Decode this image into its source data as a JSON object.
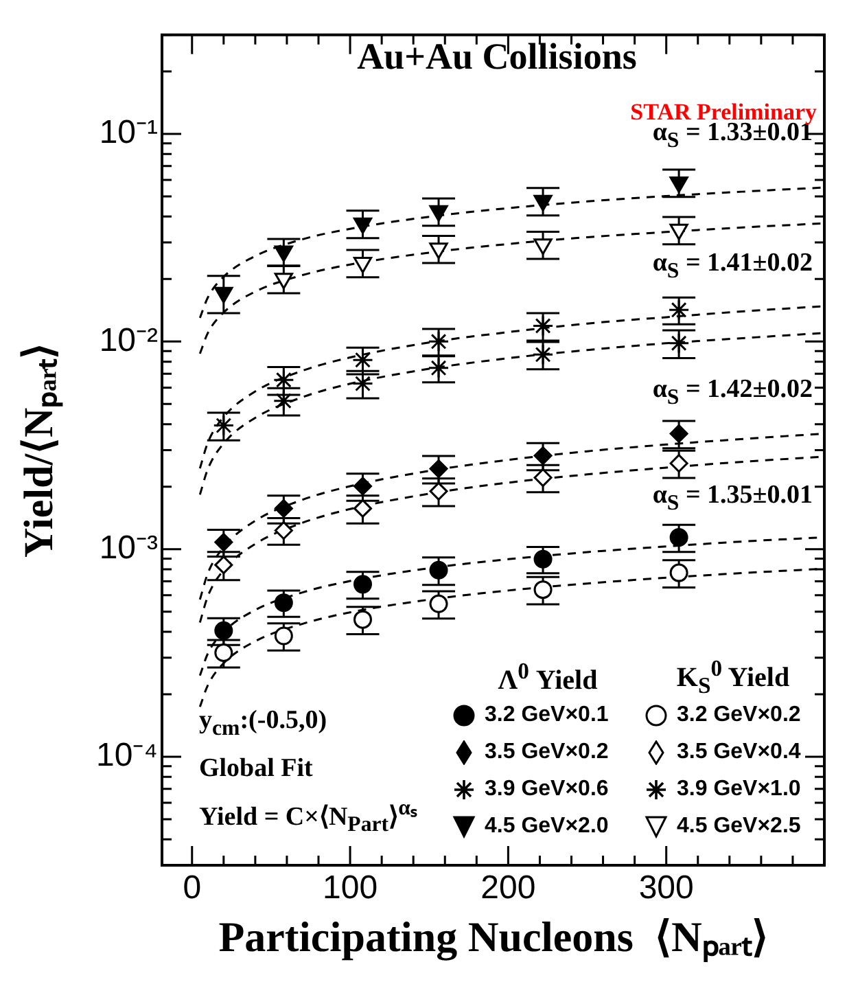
{
  "chart_data": {
    "type": "scatter",
    "title": "Au+Au Collisions",
    "xlabel": "Participating Nucleons  ⟨Nₚₐᵣₜ⟩",
    "ylabel": "Yield/⟨Nₚₐᵣₜ⟩",
    "annotations": [
      "STAR Preliminary",
      "Λ$^{0}$ Yield",
      "K$_{S}$$^{0}$ Yield",
      "y$_{cm}$:(-0.5,0)",
      "Global Fit",
      "Yield = C×⟨N$_{Part}$⟩$^{αₛ}$",
      "α$_{S}$ = 1.33±0.01",
      "α$_{S}$ = 1.41±0.02",
      "α$_{S}$ = 1.42±0.02",
      "α$_{S}$ = 1.35±0.01"
    ],
    "x": [
      20,
      58,
      108,
      156,
      222,
      308
    ],
    "xlim": [
      -19,
      400
    ],
    "xticks": [
      0,
      {
        "value": 20,
        "label": null
      },
      {
        "value": 40,
        "label": null
      },
      {
        "value": 60,
        "label": null
      },
      {
        "value": 80,
        "label": null
      },
      100,
      {
        "value": 120,
        "label": null
      },
      {
        "value": 140,
        "label": null
      },
      {
        "value": 160,
        "label": null
      },
      {
        "value": 180,
        "label": null
      },
      200,
      {
        "value": 220,
        "label": null
      },
      {
        "value": 240,
        "label": null
      },
      {
        "value": 260,
        "label": null
      },
      {
        "value": 280,
        "label": null
      },
      300,
      {
        "value": 320,
        "label": null
      },
      {
        "value": 340,
        "label": null
      },
      {
        "value": 360,
        "label": null
      },
      {
        "value": 380,
        "label": null
      }
    ],
    "ylim": [
      3e-05,
      0.3
    ],
    "yticks": [
      {
        "value": 3e-05,
        "label": null
      },
      {
        "value": 4e-05,
        "label": null
      },
      {
        "value": 5e-05,
        "label": null
      },
      {
        "value": 6e-05,
        "label": null
      },
      {
        "value": 7e-05,
        "label": null
      },
      {
        "value": 8e-05,
        "label": null
      },
      {
        "value": 9e-05,
        "label": null
      },
      {
        "value": 0.0001,
        "label": "10⁻⁴"
      },
      {
        "value": 0.0002,
        "label": null
      },
      {
        "value": 0.0003,
        "label": null
      },
      {
        "value": 0.0004,
        "label": null
      },
      {
        "value": 0.0005,
        "label": null
      },
      {
        "value": 0.0006,
        "label": null
      },
      {
        "value": 0.0007,
        "label": null
      },
      {
        "value": 0.0008,
        "label": null
      },
      {
        "value": 0.0009,
        "label": null
      },
      {
        "value": 0.001,
        "label": "10⁻³"
      },
      {
        "value": 0.002,
        "label": null
      },
      {
        "value": 0.003,
        "label": null
      },
      {
        "value": 0.004,
        "label": null
      },
      {
        "value": 0.005,
        "label": null
      },
      {
        "value": 0.006,
        "label": null
      },
      {
        "value": 0.007,
        "label": null
      },
      {
        "value": 0.008,
        "label": null
      },
      {
        "value": 0.009,
        "label": null
      },
      {
        "value": 0.01,
        "label": "10⁻²"
      },
      {
        "value": 0.02,
        "label": null
      },
      {
        "value": 0.03,
        "label": null
      },
      {
        "value": 0.04,
        "label": null
      },
      {
        "value": 0.05,
        "label": null
      },
      {
        "value": 0.06,
        "label": null
      },
      {
        "value": 0.07,
        "label": null
      },
      {
        "value": 0.08,
        "label": null
      },
      {
        "value": 0.09,
        "label": null
      },
      {
        "value": 0.1,
        "label": "10⁻¹"
      },
      {
        "value": 0.2,
        "label": null
      },
      {
        "value": 0.3,
        "label": null
      }
    ],
    "log": "y",
    "grid": false,
    "legend": "bottom right",
    "series": [
      {
        "name": "3.2 GeV×0.1",
        "color": "#000000",
        "marker": "circle",
        "values": [
          0.000405,
          0.000552,
          0.000677,
          0.000792,
          0.000895,
          0.00114
        ],
        "errors": [
          6e-05,
          8e-05,
          0.0001,
          0.00012,
          0.00013,
          0.00017
        ]
      },
      {
        "name": "3.5 GeV×0.2",
        "color": "#000000",
        "marker": "diamond",
        "values": [
          0.00108,
          0.00157,
          0.00201,
          0.00244,
          0.00282,
          0.0036
        ],
        "errors": [
          0.00016,
          0.00024,
          0.0003,
          0.00037,
          0.00042,
          0.00054
        ]
      },
      {
        "name": "3.9 GeV×0.6",
        "color": "#000000",
        "marker": "cross",
        "values": [
          0.00394,
          0.00653,
          0.00815,
          0.01,
          0.0119,
          0.0142
        ],
        "errors": [
          0.0006,
          0.001,
          0.0012,
          0.0015,
          0.0018,
          0.0021
        ]
      },
      {
        "name": "4.5 GeV×2.0",
        "color": "#000000",
        "marker": "triangle",
        "values": [
          0.0172,
          0.0272,
          0.0371,
          0.0425,
          0.0477,
          0.0585
        ],
        "errors": [
          0.0035,
          0.004,
          0.0056,
          0.0064,
          0.0072,
          0.0088
        ]
      },
      {
        "name": "3.2 GeV×0.2",
        "color": "#ffffff",
        "marker": "circle",
        "values": [
          0.000317,
          0.000382,
          0.000458,
          0.000545,
          0.000638,
          0.000769
        ],
        "errors": [
          4.8e-05,
          5.7e-05,
          6.9e-05,
          8.2e-05,
          9.6e-05,
          0.000115
        ]
      },
      {
        "name": "3.5 GeV×0.4",
        "color": "#ffffff",
        "marker": "diamond",
        "values": [
          0.000839,
          0.00123,
          0.00157,
          0.0019,
          0.00221,
          0.00259
        ],
        "errors": [
          0.00013,
          0.00018,
          0.00024,
          0.00029,
          0.00033,
          0.00039
        ]
      },
      {
        "name": "3.9 GeV×1.0",
        "color": "#000000",
        "marker": "cross",
        "values": [
          null,
          0.00518,
          0.00627,
          0.00746,
          0.00865,
          0.00982
        ],
        "errors": [
          null,
          0.00078,
          0.00094,
          0.0011,
          0.0013,
          0.0015
        ]
      },
      {
        "name": "4.5 GeV×2.5",
        "color": "#ffffff",
        "marker": "triangle",
        "values": [
          null,
          0.0201,
          0.024,
          0.0281,
          0.0294,
          0.0346
        ],
        "errors": [
          null,
          0.003,
          0.0036,
          0.0042,
          0.0044,
          0.0052
        ]
      },
      {
        "type": "line",
        "color": "#000000",
        "marker": "none",
        "line_style": "dashed",
        "x": [
          5,
          10,
          20,
          40,
          70,
          100,
          150,
          200,
          250,
          300,
          350,
          400
        ],
        "values": [
          0.000246,
          0.000314,
          0.000399,
          0.000509,
          0.000619,
          0.000702,
          0.000809,
          0.000894,
          0.000967,
          0.00103,
          0.00109,
          0.00114
        ]
      },
      {
        "type": "line",
        "color": "#000000",
        "marker": "none",
        "line_style": "dashed",
        "x": [
          5,
          10,
          20,
          40,
          70,
          100,
          150,
          200,
          250,
          300,
          350,
          400
        ],
        "values": [
          0.000572,
          0.000765,
          0.00102,
          0.00137,
          0.00173,
          0.00201,
          0.00238,
          0.00269,
          0.00296,
          0.00319,
          0.0034,
          0.0036
        ]
      },
      {
        "type": "line",
        "color": "#000000",
        "marker": "none",
        "line_style": "dashed",
        "x": [
          5,
          10,
          20,
          40,
          70,
          100,
          150,
          200,
          250,
          300,
          350,
          400
        ],
        "values": [
          0.00245,
          0.00326,
          0.00433,
          0.00575,
          0.00724,
          0.00838,
          0.00989,
          0.0111,
          0.0122,
          0.0131,
          0.014,
          0.0148
        ]
      },
      {
        "type": "line",
        "color": "#000000",
        "marker": "none",
        "line_style": "dashed",
        "x": [
          5,
          10,
          20,
          40,
          70,
          100,
          150,
          200,
          250,
          300,
          350,
          400
        ],
        "values": [
          0.013,
          0.0163,
          0.0205,
          0.0258,
          0.0311,
          0.0349,
          0.0399,
          0.0439,
          0.0473,
          0.0502,
          0.0528,
          0.0552
        ]
      },
      {
        "type": "line",
        "color": "#000000",
        "marker": "none",
        "line_style": "dashed",
        "x": [
          5,
          10,
          20,
          40,
          70,
          100,
          150,
          200,
          250,
          300,
          350,
          400
        ],
        "values": [
          0.000174,
          0.000221,
          0.000282,
          0.00036,
          0.000437,
          0.000496,
          0.000571,
          0.000632,
          0.000683,
          0.000728,
          0.000768,
          0.000805
        ]
      },
      {
        "type": "line",
        "color": "#000000",
        "marker": "none",
        "line_style": "dashed",
        "x": [
          5,
          10,
          20,
          40,
          70,
          100,
          150,
          200,
          250,
          300,
          350,
          400
        ],
        "values": [
          0.000443,
          0.000593,
          0.000793,
          0.00106,
          0.00134,
          0.00156,
          0.00185,
          0.00209,
          0.00229,
          0.00247,
          0.00264,
          0.00279
        ]
      },
      {
        "type": "line",
        "color": "#000000",
        "marker": "none",
        "line_style": "dashed",
        "x": [
          5,
          10,
          20,
          40,
          70,
          100,
          150,
          200,
          250,
          300,
          350,
          400
        ],
        "values": [
          0.00183,
          0.00243,
          0.00323,
          0.00429,
          0.0054,
          0.00626,
          0.00739,
          0.00831,
          0.0091,
          0.00981,
          0.0104,
          0.011
        ]
      },
      {
        "type": "line",
        "color": "#000000",
        "marker": "none",
        "line_style": "dashed",
        "x": [
          5,
          10,
          20,
          40,
          70,
          100,
          150,
          200,
          250,
          300,
          350,
          400
        ],
        "values": [
          0.00874,
          0.011,
          0.0138,
          0.0174,
          0.0209,
          0.0235,
          0.0268,
          0.0295,
          0.0318,
          0.0337,
          0.0355,
          0.0371
        ]
      }
    ]
  }
}
